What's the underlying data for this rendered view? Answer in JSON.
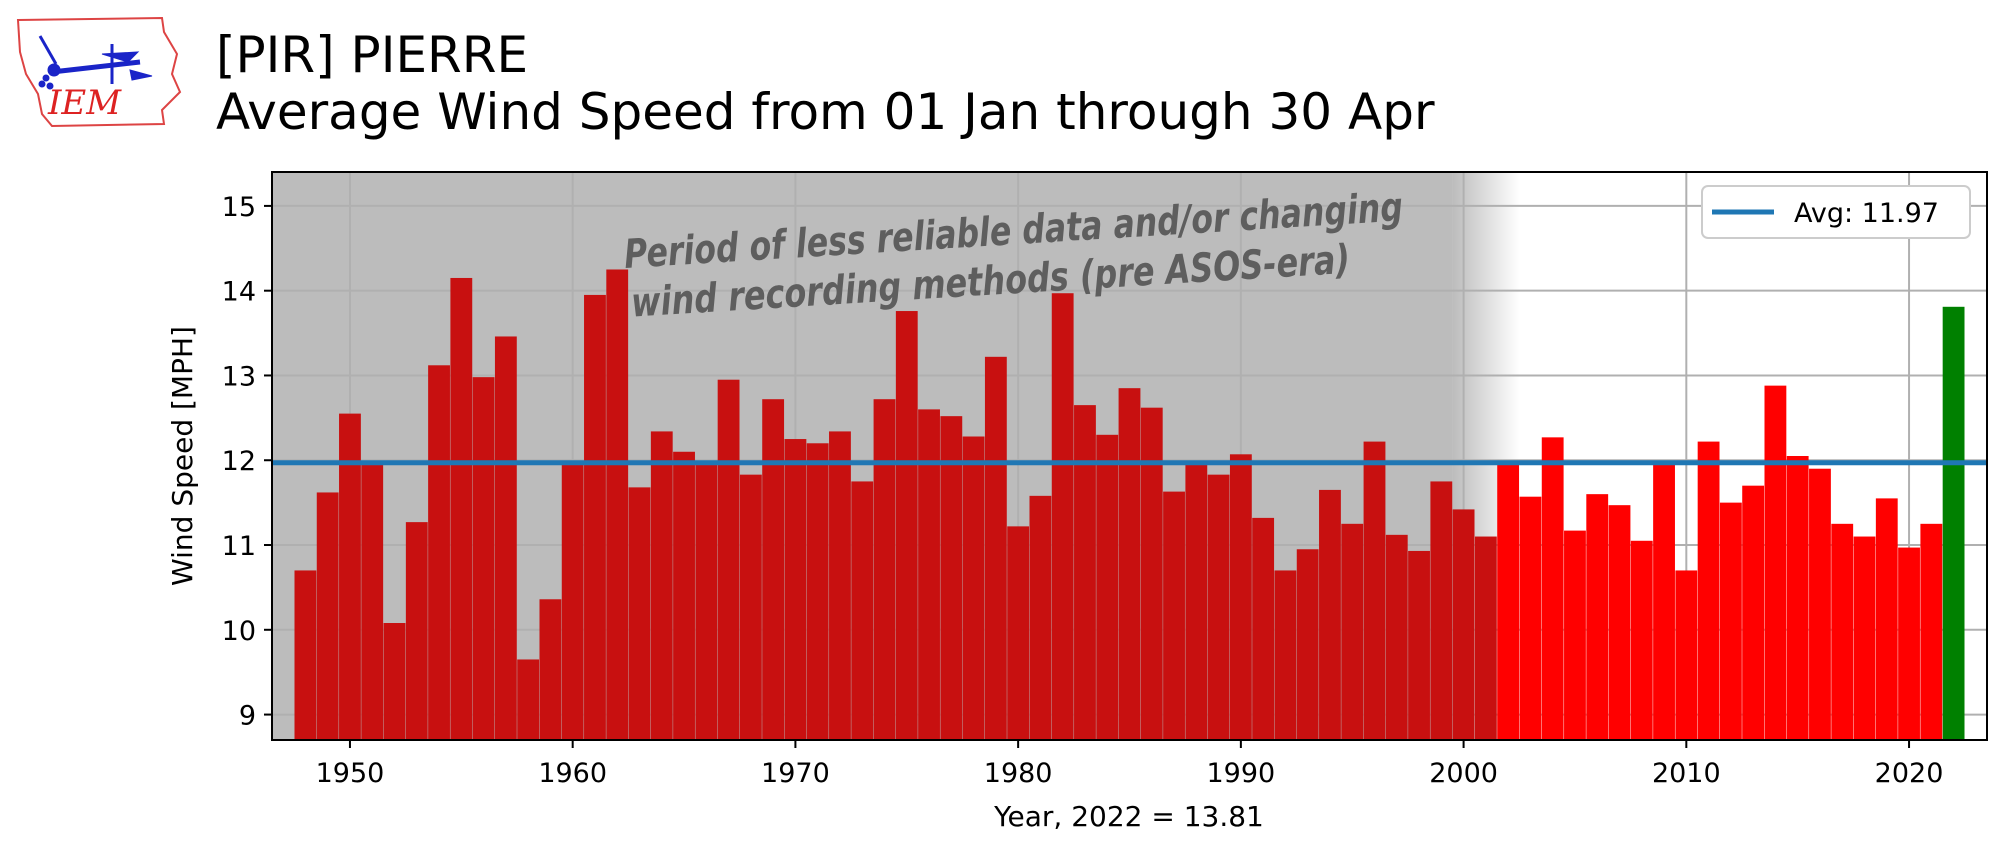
{
  "header": {
    "title_line1": "[PIR] PIERRE",
    "title_line2": "Average Wind Speed from 01 Jan through 30 Apr"
  },
  "logo": {
    "text": "IEM"
  },
  "chart_data": {
    "type": "bar",
    "xlabel": "Year, 2022 = 13.81",
    "ylabel": "Wind Speed [MPH]",
    "xlim": [
      1946.5,
      2023.5
    ],
    "ylim": [
      8.7,
      15.4
    ],
    "xticks": [
      1950,
      1960,
      1970,
      1980,
      1990,
      2000,
      2010,
      2020
    ],
    "yticks": [
      9,
      10,
      11,
      12,
      13,
      14,
      15
    ],
    "grid": true,
    "x": [
      1948,
      1949,
      1950,
      1951,
      1952,
      1953,
      1954,
      1955,
      1956,
      1957,
      1958,
      1959,
      1960,
      1961,
      1962,
      1963,
      1964,
      1965,
      1966,
      1967,
      1968,
      1969,
      1970,
      1971,
      1972,
      1973,
      1974,
      1975,
      1976,
      1977,
      1978,
      1979,
      1980,
      1981,
      1982,
      1983,
      1984,
      1985,
      1986,
      1987,
      1988,
      1989,
      1990,
      1991,
      1992,
      1993,
      1994,
      1995,
      1996,
      1997,
      1998,
      1999,
      2000,
      2001,
      2002,
      2003,
      2004,
      2005,
      2006,
      2007,
      2008,
      2009,
      2010,
      2011,
      2012,
      2013,
      2014,
      2015,
      2016,
      2017,
      2018,
      2019,
      2020,
      2021,
      2022
    ],
    "values": [
      10.7,
      11.62,
      12.55,
      11.97,
      10.08,
      11.27,
      13.12,
      14.15,
      12.98,
      13.46,
      9.65,
      10.36,
      11.97,
      13.95,
      14.25,
      11.68,
      12.34,
      12.1,
      11.97,
      12.95,
      11.83,
      12.72,
      12.25,
      12.2,
      12.34,
      11.75,
      12.72,
      13.76,
      12.6,
      12.52,
      12.28,
      13.22,
      11.22,
      11.58,
      13.97,
      12.65,
      12.3,
      12.85,
      12.62,
      11.63,
      11.97,
      11.83,
      12.07,
      11.32,
      10.7,
      10.95,
      11.65,
      11.25,
      12.22,
      11.12,
      10.93,
      11.75,
      11.42,
      11.1,
      11.97,
      11.57,
      12.27,
      11.17,
      11.6,
      11.47,
      11.05,
      11.97,
      10.7,
      12.22,
      11.5,
      11.7,
      12.88,
      12.05,
      11.9,
      11.25,
      11.1,
      11.55,
      10.97,
      11.25,
      13.81
    ],
    "colors": {
      "pre_asos": "#c81010",
      "normal": "#ff0000",
      "highlight": "#008000",
      "avg_line": "#1f77b4",
      "shade": "#bcbcbc"
    },
    "highlight_year": 2022,
    "shaded_until_year": 2002,
    "average": {
      "value": 11.97,
      "legend": "Avg: 11.97"
    },
    "legend_position": "top-right",
    "annotation": {
      "line1": "Period of less reliable data and/or changing",
      "line2": "wind recording methods (pre ASOS-era)"
    }
  }
}
